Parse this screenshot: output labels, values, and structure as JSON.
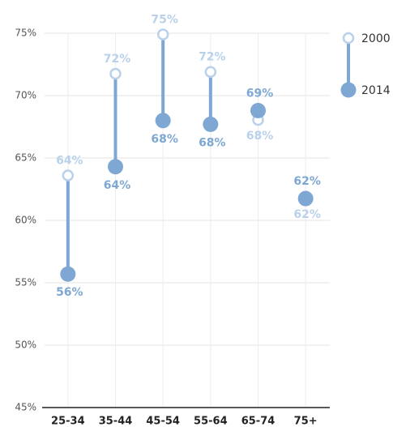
{
  "chart_data": {
    "type": "dumbbell",
    "categories": [
      "25-34",
      "35-44",
      "45-54",
      "55-64",
      "65-74",
      "75+"
    ],
    "series": [
      {
        "name": "2000",
        "color": "#b9d1ea",
        "values": [
          63.6,
          71.75,
          74.9,
          71.9,
          68.05,
          61.75
        ],
        "value_labels": [
          "64%",
          "72%",
          "75%",
          "72%",
          "68%",
          "62%"
        ]
      },
      {
        "name": "2014",
        "color": "#7ea8d3",
        "values": [
          55.7,
          64.3,
          68.0,
          67.7,
          68.8,
          61.75
        ],
        "value_labels": [
          "56%",
          "64%",
          "68%",
          "68%",
          "69%",
          "62%"
        ]
      }
    ],
    "ylim": [
      45,
      75
    ],
    "yticks": [
      {
        "value": 45,
        "label": "45%"
      },
      {
        "value": 50,
        "label": "50%"
      },
      {
        "value": 55,
        "label": "55%"
      },
      {
        "value": 60,
        "label": "60%"
      },
      {
        "value": 65,
        "label": "65%"
      },
      {
        "value": 70,
        "label": "70%"
      },
      {
        "value": 75,
        "label": "75%"
      }
    ],
    "grid": true
  }
}
